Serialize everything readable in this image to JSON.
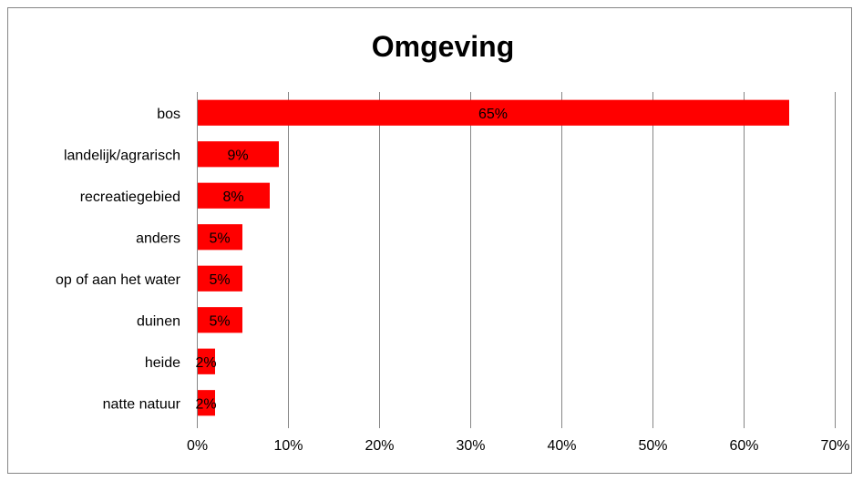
{
  "chart_data": {
    "type": "bar",
    "orientation": "horizontal",
    "title": "Omgeving",
    "xlabel": "",
    "ylabel": "",
    "categories": [
      "bos",
      "landelijk/agrarisch",
      "recreatiegebied",
      "anders",
      "op of aan het water",
      "duinen",
      "heide",
      "natte natuur"
    ],
    "values": [
      65,
      9,
      8,
      5,
      5,
      5,
      2,
      2
    ],
    "data_labels": [
      "65%",
      "9%",
      "8%",
      "5%",
      "5%",
      "5%",
      "2%",
      "2%"
    ],
    "xlim": [
      0,
      70
    ],
    "x_ticks": [
      0,
      10,
      20,
      30,
      40,
      50,
      60,
      70
    ],
    "x_tick_labels": [
      "0%",
      "10%",
      "20%",
      "30%",
      "40%",
      "50%",
      "60%",
      "70%"
    ],
    "grid": true,
    "legend": "none",
    "bar_color": "#ff0000"
  }
}
